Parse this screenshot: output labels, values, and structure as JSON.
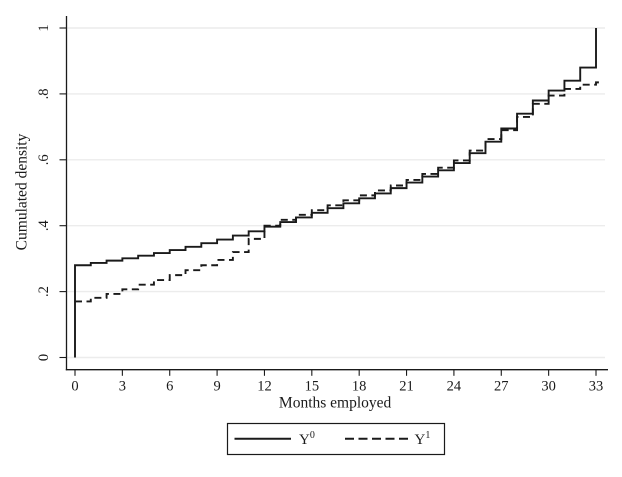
{
  "chart_data": {
    "type": "line",
    "subtype": "step-cdf",
    "title": "",
    "xlabel": "Months employed",
    "ylabel": "Cumulated density",
    "xlim": [
      0,
      33
    ],
    "ylim": [
      0,
      1
    ],
    "grid": "horizontal",
    "legend_position": "bottom-center",
    "x_ticks": [
      0,
      3,
      6,
      9,
      12,
      15,
      18,
      21,
      24,
      27,
      30,
      33
    ],
    "y_ticks": [
      {
        "value": 0,
        "label": "0"
      },
      {
        "value": 0.2,
        "label": ".2"
      },
      {
        "value": 0.4,
        "label": ".4"
      },
      {
        "value": 0.6,
        "label": ".6"
      },
      {
        "value": 0.8,
        "label": ".8"
      },
      {
        "value": 1,
        "label": "1"
      }
    ],
    "series": [
      {
        "name": "Y0",
        "label_base": "Y",
        "label_sup": "0",
        "line_style": "solid",
        "starts_from_zero": true,
        "tail_extend": false,
        "x": [
          0,
          1,
          2,
          3,
          4,
          5,
          6,
          7,
          8,
          9,
          10,
          11,
          12,
          13,
          14,
          15,
          16,
          17,
          18,
          19,
          20,
          21,
          22,
          23,
          24,
          25,
          26,
          27,
          28,
          29,
          30,
          31,
          32,
          33
        ],
        "values": [
          0.28,
          0.287,
          0.294,
          0.301,
          0.309,
          0.317,
          0.326,
          0.336,
          0.347,
          0.358,
          0.37,
          0.383,
          0.397,
          0.411,
          0.425,
          0.439,
          0.453,
          0.468,
          0.483,
          0.498,
          0.514,
          0.531,
          0.549,
          0.568,
          0.59,
          0.62,
          0.655,
          0.695,
          0.74,
          0.78,
          0.81,
          0.84,
          0.88,
          1.0
        ]
      },
      {
        "name": "Y1",
        "label_base": "Y",
        "label_sup": "1",
        "line_style": "dashed",
        "starts_from_zero": false,
        "tail_extend": true,
        "x": [
          0,
          1,
          2,
          3,
          4,
          5,
          6,
          7,
          8,
          9,
          10,
          11,
          12,
          13,
          14,
          15,
          16,
          17,
          18,
          19,
          20,
          21,
          22,
          23,
          24,
          25,
          26,
          27,
          28,
          29,
          30,
          31,
          32,
          33
        ],
        "values": [
          0.17,
          0.181,
          0.193,
          0.207,
          0.221,
          0.235,
          0.25,
          0.265,
          0.28,
          0.296,
          0.32,
          0.36,
          0.4,
          0.418,
          0.433,
          0.447,
          0.462,
          0.477,
          0.492,
          0.507,
          0.522,
          0.539,
          0.557,
          0.576,
          0.598,
          0.628,
          0.663,
          0.69,
          0.73,
          0.77,
          0.795,
          0.815,
          0.828,
          0.835
        ]
      }
    ],
    "colors": {
      "line": "#1a1a1a",
      "grid": "#ececec",
      "axis": "#1a1a1a",
      "background": "#ffffff",
      "legend_border": "#1a1a1a"
    }
  }
}
